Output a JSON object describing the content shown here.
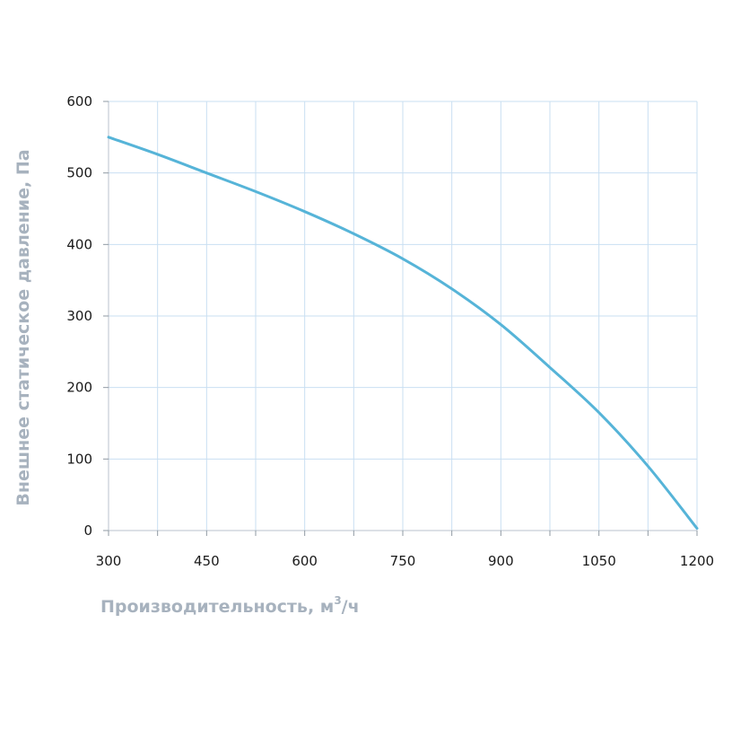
{
  "chart_data": {
    "type": "line",
    "title": "",
    "xlabel": "Производительность, м",
    "xlabel_superscript": "3",
    "xlabel_suffix": "/ч",
    "ylabel": "Внешнее статическое давление, Па",
    "xlim": [
      300,
      1200
    ],
    "ylim": [
      0,
      600
    ],
    "x_ticks": [
      300,
      450,
      600,
      750,
      900,
      1050,
      1200
    ],
    "y_ticks": [
      0,
      100,
      200,
      300,
      400,
      500,
      600
    ],
    "x_minor_step": 75,
    "grid": true,
    "legend": "none",
    "series": [
      {
        "color": "#56b4d8",
        "x": [
          300,
          375,
          450,
          525,
          600,
          675,
          750,
          825,
          900,
          975,
          1050,
          1125,
          1200
        ],
        "y": [
          550,
          526,
          500,
          474,
          446,
          415,
          380,
          338,
          288,
          228,
          165,
          90,
          3
        ]
      }
    ]
  }
}
